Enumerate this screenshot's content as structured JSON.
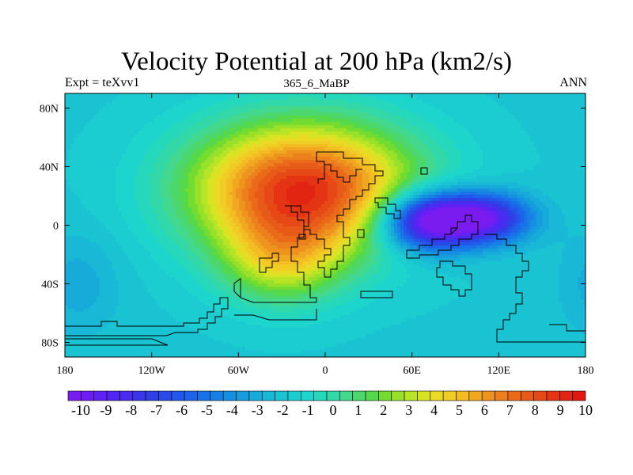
{
  "header": {
    "title": "Velocity Potential at 200 hPa (km2/s)",
    "left_label": "Expt = teXvv1",
    "center_label": "365_6_MaBP",
    "right_label": "ANN"
  },
  "chart_data": {
    "type": "heatmap",
    "title": "Velocity Potential at 200 hPa (km2/s)",
    "xlabel": "",
    "ylabel": "",
    "xlim": [
      -180,
      180
    ],
    "ylim": [
      -90,
      90
    ],
    "x_ticks": [
      {
        "value": -180,
        "label": "180"
      },
      {
        "value": -120,
        "label": "120W"
      },
      {
        "value": -60,
        "label": "60W"
      },
      {
        "value": 0,
        "label": "0"
      },
      {
        "value": 60,
        "label": "60E"
      },
      {
        "value": 120,
        "label": "120E"
      },
      {
        "value": 180,
        "label": "180"
      }
    ],
    "y_ticks": [
      {
        "value": 80,
        "label": "80N"
      },
      {
        "value": 40,
        "label": "40N"
      },
      {
        "value": 0,
        "label": "0"
      },
      {
        "value": -40,
        "label": "40S"
      },
      {
        "value": -80,
        "label": "80S"
      }
    ],
    "colorbar": {
      "levels": [
        -10,
        -9.5,
        -9,
        -8.5,
        -8,
        -7.5,
        -7,
        -6.5,
        -6,
        -5.5,
        -5,
        -4.5,
        -4,
        -3.5,
        -3,
        -2.5,
        -2,
        -1.5,
        -1,
        -0.5,
        0,
        0.5,
        1,
        1.5,
        2,
        2.5,
        3,
        3.5,
        4,
        4.5,
        5,
        5.5,
        6,
        6.5,
        7,
        7.5,
        8,
        8.5,
        9,
        9.5,
        10
      ],
      "labels": [
        "-10",
        "-9",
        "-8",
        "-7",
        "-6",
        "-5",
        "-4",
        "-3",
        "-2",
        "-1",
        "0",
        "1",
        "2",
        "3",
        "4",
        "5",
        "6",
        "7",
        "8",
        "9",
        "10"
      ],
      "colors": [
        "#7a1cf0",
        "#6e1ef2",
        "#5f22f3",
        "#5226f2",
        "#4a2cf0",
        "#3b35ea",
        "#2f3fe6",
        "#2a4ae8",
        "#2356ea",
        "#1d64ea",
        "#1a72e8",
        "#1780e4",
        "#1590e0",
        "#159ddd",
        "#16abd8",
        "#18b8d6",
        "#19c3d2",
        "#1bcdd0",
        "#1dd5cc",
        "#25d8bc",
        "#33d8a8",
        "#42d88e",
        "#4bd66e",
        "#55d84a",
        "#74dc2e",
        "#98e02a",
        "#b8e426",
        "#d6e424",
        "#eada26",
        "#f0cc24",
        "#f2bc22",
        "#f0a820",
        "#ee941e",
        "#ec801c",
        "#ea6a1a",
        "#e85a18",
        "#e64816",
        "#e43414",
        "#e22412",
        "#e01810"
      ]
    },
    "fields": [
      {
        "lon": -15,
        "lat": 25,
        "amplitude": 10.5,
        "sx": 55,
        "sy": 32
      },
      {
        "lon": -30,
        "lat": -25,
        "amplitude": 4.0,
        "sx": 30,
        "sy": 22
      },
      {
        "lon": 72,
        "lat": 3,
        "amplitude": -10.0,
        "sx": 24,
        "sy": 14
      },
      {
        "lon": 112,
        "lat": 5,
        "amplitude": -6.5,
        "sx": 22,
        "sy": 12
      },
      {
        "lon": -170,
        "lat": -40,
        "amplitude": -1.2,
        "sx": 20,
        "sy": 25
      }
    ],
    "background_value": -1.6
  }
}
